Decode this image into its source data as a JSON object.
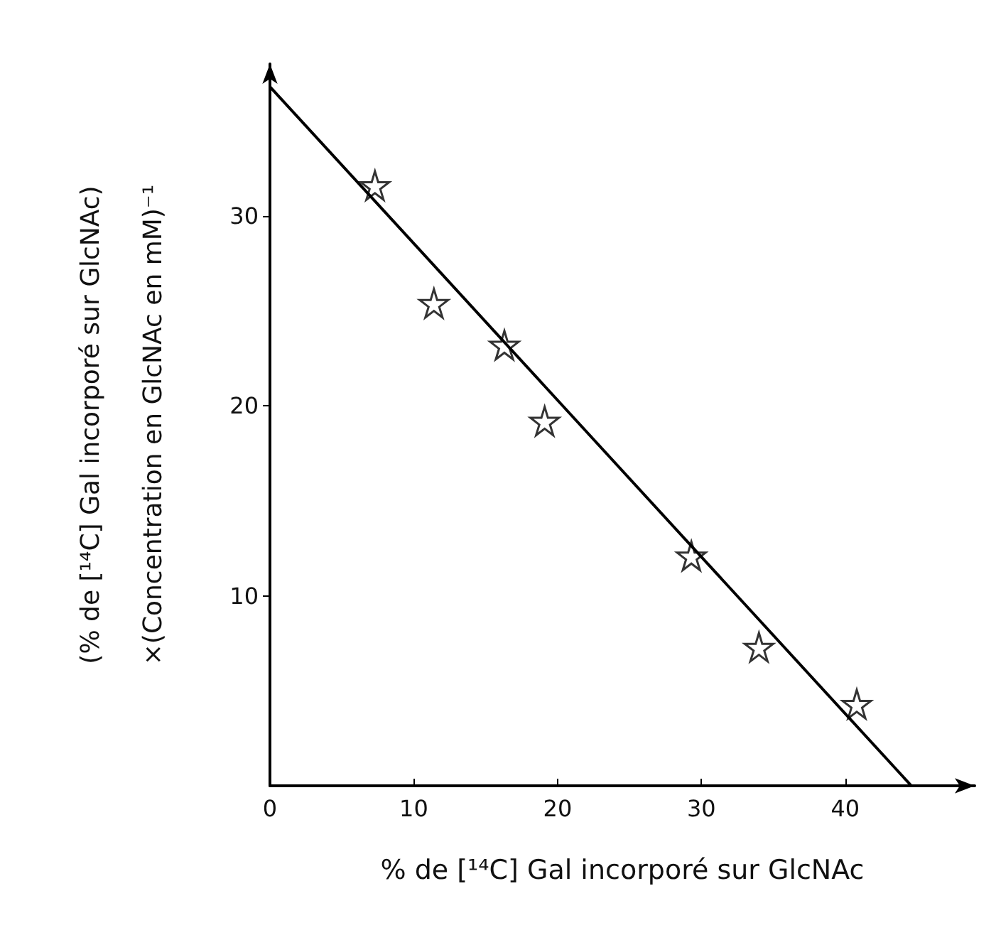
{
  "chart_data": {
    "type": "scatter",
    "xlabel": "% de [¹⁴C] Gal incorporé sur GlcNAc",
    "ylabel": "(% de [¹⁴C] Gal incorporé sur GlcNAc)\n×(Concentration en GlcNAc en mM)⁻¹",
    "series": [
      {
        "color": "#000000",
        "marker": "star",
        "x": [
          7.3,
          11.4,
          16.3,
          19.1,
          29.3,
          34.0,
          40.8
        ],
        "values": [
          31.6,
          25.4,
          23.2,
          19.2,
          12.1,
          7.3,
          4.3
        ]
      },
      {
        "type": "line",
        "color": "#000000",
        "marker": "none",
        "line_style": "solid",
        "x": [
          0,
          44.6
        ],
        "values": [
          36.8,
          0
        ]
      }
    ],
    "xlim": [
      0,
      49
    ],
    "xticks": [
      0,
      10,
      20,
      30,
      40
    ],
    "ylim": [
      0,
      38
    ],
    "yticks": [
      10,
      20,
      30
    ],
    "grid": false
  }
}
